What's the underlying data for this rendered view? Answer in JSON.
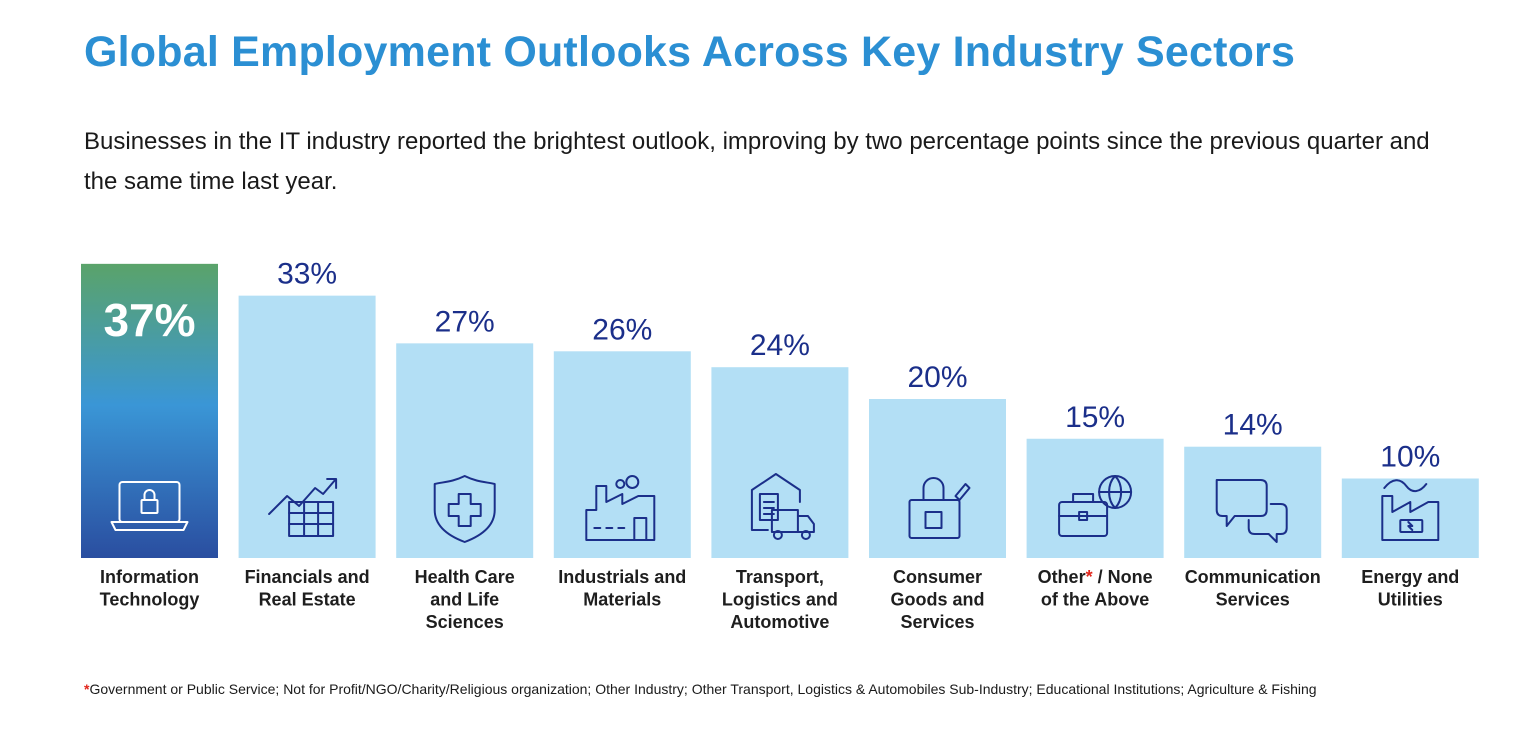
{
  "title": "Global Employment Outlooks Across Key Industry Sectors",
  "subtitle": "Businesses in the IT industry reported the brightest outlook, improving by two percentage points since the previous quarter and the same time last year.",
  "footnote": {
    "marker": "*",
    "text": "Government or Public Service; Not for Profit/NGO/Charity/Religious organization; Other Industry; Other Transport, Logistics & Automobiles Sub-Industry; Educational Institutions; Agriculture & Fishing"
  },
  "colors": {
    "title": "#2b8fd3",
    "bar": "#b3dff5",
    "value_text": "#1b2f8a",
    "highlight_top": "#5aa36a",
    "highlight_mid": "#3a96d6",
    "highlight_bottom": "#2a4ea0",
    "footnote_star": "#e1251b"
  },
  "chart_data": {
    "type": "bar",
    "title": "Global Employment Outlooks Across Key Industry Sectors",
    "xlabel": "",
    "ylabel": "",
    "ylim": [
      0,
      40
    ],
    "grid": false,
    "highlight_index": 0,
    "unit": "%",
    "categories": [
      {
        "lines": [
          "Information",
          "Technology"
        ],
        "icon": "laptop-lock-icon"
      },
      {
        "lines": [
          "Financials and",
          "Real Estate"
        ],
        "icon": "finance-chart-icon"
      },
      {
        "lines": [
          "Health Care",
          "and Life",
          "Sciences"
        ],
        "icon": "health-shield-icon"
      },
      {
        "lines": [
          "Industrials and",
          "Materials"
        ],
        "icon": "factory-icon"
      },
      {
        "lines": [
          "Transport,",
          "Logistics and",
          "Automotive"
        ],
        "icon": "warehouse-truck-icon"
      },
      {
        "lines": [
          "Consumer",
          "Goods and",
          "Services"
        ],
        "icon": "shopping-bag-icon"
      },
      {
        "lines": [
          "Other* / None",
          "of the Above"
        ],
        "icon": "briefcase-globe-icon"
      },
      {
        "lines": [
          "Communication",
          "Services"
        ],
        "icon": "chat-bubbles-icon"
      },
      {
        "lines": [
          "Energy and",
          "Utilities"
        ],
        "icon": "energy-factory-icon"
      }
    ],
    "values": [
      37,
      33,
      27,
      26,
      24,
      20,
      15,
      14,
      10
    ]
  }
}
